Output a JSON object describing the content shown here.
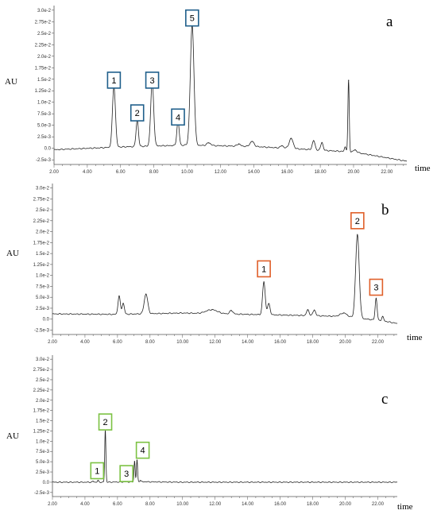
{
  "chart_data": [
    {
      "type": "line",
      "panel_label": "a",
      "ylabel": "AU",
      "xlabel": "time",
      "xlim": [
        2.0,
        23.2
      ],
      "ylim": [
        -0.0035,
        0.031
      ],
      "xticks": [
        "2.00",
        "4.00",
        "6.00",
        "8.00",
        "10.00",
        "12.00",
        "14.00",
        "16.00",
        "18.00",
        "20.00",
        "22.00"
      ],
      "yticks": [
        "-2.5e-3",
        "0.0",
        "2.5e-3",
        "5.0e-3",
        "7.5e-3",
        "1.0e-2",
        "1.25e-2",
        "1.5e-2",
        "1.75e-2",
        "2.0e-2",
        "2.25e-2",
        "2.5e-2",
        "2.75e-2",
        "3.0e-2"
      ],
      "ytick_values": [
        -0.0025,
        0,
        0.0025,
        0.005,
        0.0075,
        0.01,
        0.0125,
        0.015,
        0.0175,
        0.02,
        0.0225,
        0.025,
        0.0275,
        0.03
      ],
      "box_color": "#1f5f8b",
      "baseline": [
        [
          2.0,
          -0.0003
        ],
        [
          6.0,
          0.0003
        ],
        [
          10.0,
          0.0007
        ],
        [
          14.0,
          0.0004
        ],
        [
          18.0,
          -0.0004
        ],
        [
          20.0,
          -0.0008
        ],
        [
          23.2,
          -0.0028
        ]
      ],
      "peaks": [
        {
          "x": 5.6,
          "h": 0.0132,
          "w": 0.09
        },
        {
          "x": 7.0,
          "h": 0.0058,
          "w": 0.07
        },
        {
          "x": 7.9,
          "h": 0.014,
          "w": 0.09
        },
        {
          "x": 9.45,
          "h": 0.0053,
          "w": 0.07
        },
        {
          "x": 10.3,
          "h": 0.026,
          "w": 0.11
        },
        {
          "x": 11.3,
          "h": 0.0006,
          "w": 0.12
        },
        {
          "x": 13.1,
          "h": 0.0005,
          "w": 0.1
        },
        {
          "x": 13.9,
          "h": 0.0011,
          "w": 0.12
        },
        {
          "x": 15.7,
          "h": 0.0005,
          "w": 0.1
        },
        {
          "x": 16.25,
          "h": 0.0022,
          "w": 0.12
        },
        {
          "x": 17.6,
          "h": 0.002,
          "w": 0.08
        },
        {
          "x": 18.1,
          "h": 0.0017,
          "w": 0.07
        },
        {
          "x": 19.5,
          "h": 0.001,
          "w": 0.05
        },
        {
          "x": 19.7,
          "h": 0.0155,
          "w": 0.04
        },
        {
          "x": 20.1,
          "h": 0.0005,
          "w": 0.1
        }
      ],
      "labels": [
        {
          "text": "1",
          "x": 5.6,
          "y": 0.0148
        },
        {
          "text": "2",
          "x": 7.0,
          "y": 0.0077
        },
        {
          "text": "3",
          "x": 7.9,
          "y": 0.0148
        },
        {
          "text": "4",
          "x": 9.45,
          "y": 0.0068
        },
        {
          "text": "5",
          "x": 10.3,
          "y": 0.0283
        }
      ]
    },
    {
      "type": "line",
      "panel_label": "b",
      "ylabel": "AU",
      "xlabel": "time",
      "xlim": [
        2.0,
        23.2
      ],
      "ylim": [
        -0.0035,
        0.031
      ],
      "xticks": [
        "2.00",
        "4.00",
        "6.00",
        "8.00",
        "10.00",
        "12.00",
        "14.00",
        "16.00",
        "18.00",
        "20.00",
        "22.00"
      ],
      "yticks": [
        "-2.5e-3",
        "0.0",
        "2.5e-3",
        "5.0e-3",
        "7.5e-3",
        "1.0e-2",
        "1.25e-2",
        "1.5e-2",
        "1.75e-2",
        "2.0e-2",
        "2.25e-2",
        "2.5e-2",
        "2.75e-2",
        "3.0e-2"
      ],
      "ytick_values": [
        -0.0025,
        0,
        0.0025,
        0.005,
        0.0075,
        0.01,
        0.0125,
        0.015,
        0.0175,
        0.02,
        0.0225,
        0.025,
        0.0275,
        0.03
      ],
      "box_color": "#e0602a",
      "baseline": [
        [
          2.0,
          0.0012
        ],
        [
          6.0,
          0.0011
        ],
        [
          10.0,
          0.0014
        ],
        [
          14.0,
          0.0011
        ],
        [
          18.0,
          0.0008
        ],
        [
          20.0,
          0.0006
        ],
        [
          22.5,
          -0.0005
        ],
        [
          23.2,
          -0.001
        ]
      ],
      "peaks": [
        {
          "x": 6.1,
          "h": 0.0042,
          "w": 0.07
        },
        {
          "x": 6.35,
          "h": 0.0025,
          "w": 0.07
        },
        {
          "x": 7.75,
          "h": 0.0045,
          "w": 0.11
        },
        {
          "x": 11.8,
          "h": 0.0009,
          "w": 0.35
        },
        {
          "x": 13.0,
          "h": 0.0008,
          "w": 0.1
        },
        {
          "x": 15.0,
          "h": 0.0075,
          "w": 0.08
        },
        {
          "x": 15.3,
          "h": 0.0025,
          "w": 0.08
        },
        {
          "x": 17.7,
          "h": 0.0013,
          "w": 0.08
        },
        {
          "x": 18.1,
          "h": 0.0013,
          "w": 0.08
        },
        {
          "x": 19.9,
          "h": 0.0008,
          "w": 0.2
        },
        {
          "x": 20.75,
          "h": 0.019,
          "w": 0.11
        },
        {
          "x": 21.9,
          "h": 0.005,
          "w": 0.06
        },
        {
          "x": 22.3,
          "h": 0.001,
          "w": 0.06
        }
      ],
      "labels": [
        {
          "text": "1",
          "x": 15.0,
          "y": 0.0115
        },
        {
          "text": "2",
          "x": 20.75,
          "y": 0.0225
        },
        {
          "text": "3",
          "x": 21.9,
          "y": 0.0073
        }
      ]
    },
    {
      "type": "line",
      "panel_label": "c",
      "ylabel": "AU",
      "xlabel": "time",
      "xlim": [
        2.0,
        23.2
      ],
      "ylim": [
        -0.0035,
        0.031
      ],
      "xticks": [
        "2.00",
        "4.00",
        "6.00",
        "8.00",
        "10.00",
        "12.00",
        "14.00",
        "16.00",
        "18.00",
        "20.00",
        "22.00"
      ],
      "yticks": [
        "-2.5e-3",
        "0.0",
        "2.5e-3",
        "5.0e-3",
        "7.5e-3",
        "1.0e-2",
        "1.25e-2",
        "1.5e-2",
        "1.75e-2",
        "2.0e-2",
        "2.25e-2",
        "2.5e-2",
        "2.75e-2",
        "3.0e-2"
      ],
      "ytick_values": [
        -0.0025,
        0,
        0.0025,
        0.005,
        0.0075,
        0.01,
        0.0125,
        0.015,
        0.0175,
        0.02,
        0.0225,
        0.025,
        0.0275,
        0.03
      ],
      "box_color": "#7cc243",
      "baseline": [
        [
          2.0,
          0.0
        ],
        [
          5.0,
          0.0
        ],
        [
          7.5,
          0.0001
        ],
        [
          10.0,
          0.0
        ],
        [
          23.2,
          0.0
        ]
      ],
      "peaks": [
        {
          "x": 4.5,
          "h": 0.0002,
          "w": 0.05
        },
        {
          "x": 4.8,
          "h": 0.0004,
          "w": 0.04
        },
        {
          "x": 5.25,
          "h": 0.0128,
          "w": 0.035
        },
        {
          "x": 7.05,
          "h": 0.005,
          "w": 0.035
        },
        {
          "x": 7.2,
          "h": 0.0053,
          "w": 0.035
        },
        {
          "x": 7.4,
          "h": 0.0003,
          "w": 0.05
        }
      ],
      "labels": [
        {
          "text": "1",
          "x": 4.75,
          "y": 0.0028
        },
        {
          "text": "2",
          "x": 5.25,
          "y": 0.0147
        },
        {
          "text": "3",
          "x": 6.55,
          "y": 0.0021
        },
        {
          "text": "4",
          "x": 7.55,
          "y": 0.0078
        }
      ]
    }
  ]
}
